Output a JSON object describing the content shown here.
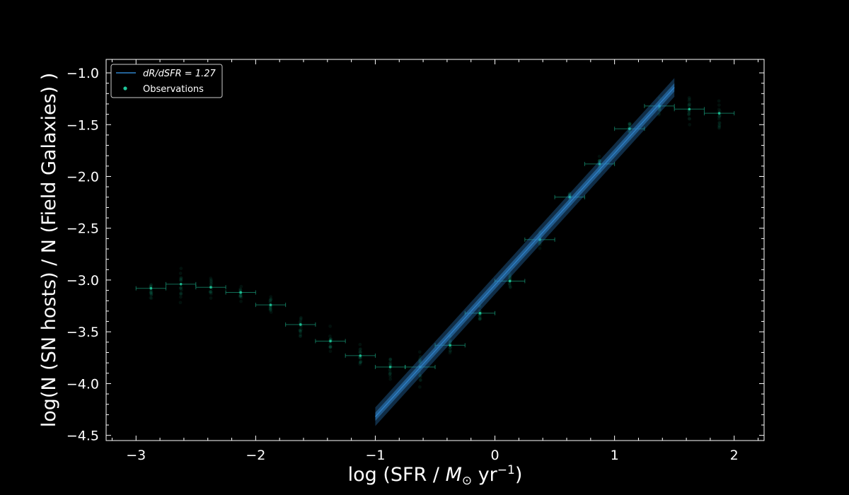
{
  "chart_data": {
    "type": "scatter",
    "xlabel": {
      "prefix": "log (SFR / ",
      "sym": "M",
      "sub": "⊙",
      "mid": " yr",
      "sup": "−1",
      "suffix": ")"
    },
    "ylabel": "log(N (SN hosts) / N (Field Galaxies) )",
    "xlim": [
      -3.25,
      2.25
    ],
    "ylim": [
      -4.55,
      -0.87
    ],
    "x_ticks": [
      -3,
      -2,
      -1,
      0,
      1,
      2
    ],
    "x_tick_labels": [
      "−3",
      "−2",
      "−1",
      "0",
      "1",
      "2"
    ],
    "y_ticks": [
      -1.0,
      -1.5,
      -2.0,
      -2.5,
      -3.0,
      -3.5,
      -4.0,
      -4.5
    ],
    "y_tick_labels": [
      "−1.0",
      "−1.5",
      "−2.0",
      "−2.5",
      "−3.0",
      "−3.5",
      "−4.0",
      "−4.5"
    ],
    "grid": false,
    "legend_position": "top-left",
    "legend": [
      {
        "label": "dR/dSFR = 1.27",
        "kind": "line"
      },
      {
        "label": "Observations",
        "kind": "marker"
      }
    ],
    "colors": {
      "fit": "#2f82c9",
      "fit_band": "#2f82c9",
      "observations": "#1fc69a",
      "axes": "#ffffff",
      "background": "#000000"
    },
    "bin_half_width": 0.125,
    "observations": {
      "x": [
        -2.875,
        -2.625,
        -2.375,
        -2.125,
        -1.875,
        -1.625,
        -1.375,
        -1.125,
        -0.875,
        -0.625,
        -0.375,
        -0.125,
        0.125,
        0.375,
        0.625,
        0.875,
        1.125,
        1.375,
        1.625,
        1.875
      ],
      "y": [
        -3.08,
        -3.04,
        -3.07,
        -3.12,
        -3.24,
        -3.43,
        -3.59,
        -3.73,
        -3.84,
        -3.84,
        -3.63,
        -3.32,
        -3.01,
        -2.61,
        -2.2,
        -1.88,
        -1.54,
        -1.32,
        -1.35,
        -1.39
      ],
      "spread": [
        0.2,
        0.22,
        0.16,
        0.12,
        0.14,
        0.15,
        0.18,
        0.15,
        0.15,
        0.3,
        0.2,
        0.12,
        0.1,
        0.12,
        0.1,
        0.11,
        0.1,
        0.1,
        0.22,
        0.2
      ]
    },
    "fit": {
      "slope": 1.27,
      "x_range": [
        -1.0,
        1.5
      ],
      "y_at_start": -4.32,
      "y_at_end": -1.14,
      "band_inner": 0.04,
      "band_outer": 0.09
    }
  }
}
